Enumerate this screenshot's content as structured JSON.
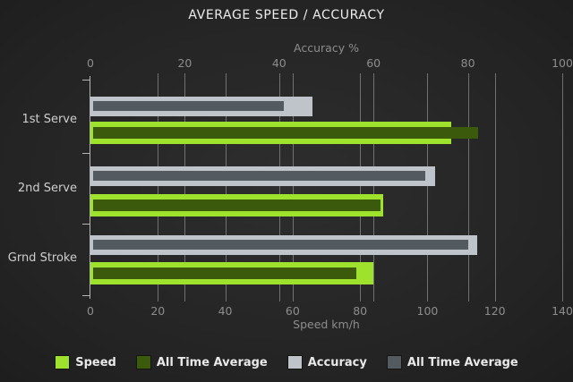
{
  "title": "AVERAGE SPEED / ACCURACY",
  "axes": {
    "top": {
      "label": "Accuracy %",
      "ticks": [
        0,
        20,
        40,
        60,
        80,
        100
      ],
      "max": 100
    },
    "bottom": {
      "label": "Speed km/h",
      "ticks": [
        0,
        20,
        40,
        60,
        80,
        100,
        120,
        140
      ],
      "max": 140
    }
  },
  "categories": [
    "1st Serve",
    "2nd Serve",
    "Grnd Stroke"
  ],
  "legend": [
    {
      "label": "Speed",
      "color": "#9fe22d"
    },
    {
      "label": "All Time Average",
      "color": "#3b5a0b"
    },
    {
      "label": "Accuracy",
      "color": "#bec4c9"
    },
    {
      "label": "All Time Average",
      "color": "#535a60"
    }
  ],
  "colors": {
    "speed": "#9fe22d",
    "speed_all_time_average": "#3b5a0b",
    "accuracy": "#bec4c9",
    "accuracy_all_time_average": "#535a60",
    "gridline": "#8a8a8a",
    "background": "#232323"
  },
  "chart_data": {
    "type": "bar",
    "orientation": "horizontal",
    "title": "AVERAGE SPEED / ACCURACY",
    "categories": [
      "1st Serve",
      "2nd Serve",
      "Grnd Stroke"
    ],
    "top_axis": {
      "label": "Accuracy %",
      "range": [
        0,
        100
      ],
      "ticks": [
        0,
        20,
        40,
        60,
        80,
        100
      ]
    },
    "bottom_axis": {
      "label": "Speed km/h",
      "range": [
        0,
        140
      ],
      "ticks": [
        0,
        20,
        40,
        60,
        80,
        100,
        120,
        140
      ]
    },
    "grid": true,
    "legend_position": "bottom",
    "series": [
      {
        "name": "Speed",
        "axis": "speed",
        "color": "#9fe22d",
        "values": [
          107,
          87,
          84
        ]
      },
      {
        "name": "All Time Average",
        "axis": "speed",
        "color": "#3b5a0b",
        "values": [
          115,
          86,
          79
        ]
      },
      {
        "name": "Accuracy",
        "axis": "accuracy",
        "color": "#bec4c9",
        "values": [
          47,
          73,
          82
        ]
      },
      {
        "name": "All Time Average",
        "axis": "accuracy",
        "color": "#535a60",
        "values": [
          41,
          71,
          80
        ]
      }
    ]
  }
}
